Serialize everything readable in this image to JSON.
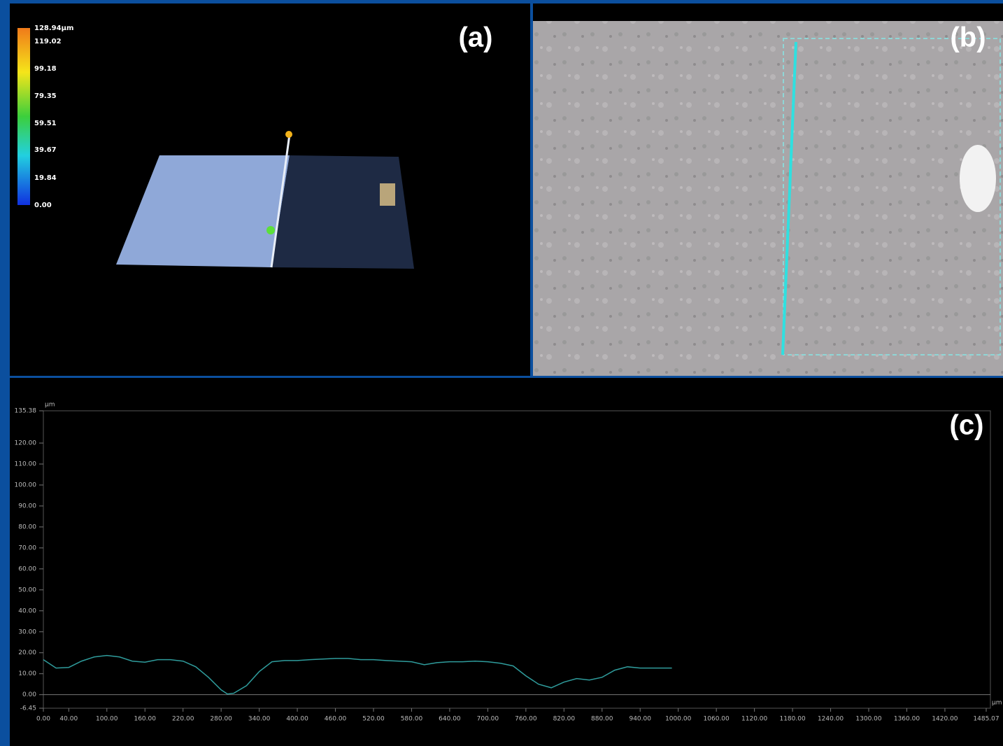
{
  "panels": {
    "a": {
      "label": "(a)",
      "colorbar": {
        "labels": [
          "128.94µm",
          "119.02",
          "99.18",
          "79.35",
          "59.51",
          "39.67",
          "19.84",
          "0.00"
        ]
      }
    },
    "b": {
      "label": "(b)"
    }
  },
  "chart_data": {
    "type": "line",
    "label": "(c)",
    "y_unit": "µm",
    "x_unit": "µm",
    "x": [
      0,
      20,
      40,
      60,
      80,
      100,
      120,
      140,
      160,
      180,
      200,
      220,
      240,
      260,
      280,
      290,
      300,
      320,
      340,
      360,
      380,
      400,
      420,
      440,
      460,
      480,
      500,
      520,
      540,
      560,
      580,
      600,
      620,
      640,
      660,
      680,
      700,
      720,
      740,
      760,
      780,
      800,
      820,
      840,
      860,
      880,
      900,
      920,
      940,
      960,
      980,
      990
    ],
    "series": [
      {
        "color": "#2f9c9c",
        "values": [
          16.7,
          12.7,
          13,
          16,
          18,
          18.7,
          18,
          16,
          15.5,
          16.7,
          16.7,
          16,
          13.3,
          8.3,
          2.3,
          0.3,
          0.7,
          4.3,
          11,
          15.7,
          16.3,
          16.3,
          16.7,
          17,
          17.3,
          17.3,
          16.7,
          16.7,
          16.3,
          16,
          15.7,
          14.3,
          15.3,
          15.7,
          15.7,
          16,
          15.7,
          15,
          13.7,
          9,
          5,
          3.3,
          6,
          7.7,
          7,
          8.3,
          11.7,
          13.3,
          12.7,
          12.7,
          12.7,
          12.7
        ]
      }
    ],
    "xlim": [
      0,
      1485.07
    ],
    "ylim": [
      -6.45,
      135.38
    ],
    "xticks": [
      {
        "value": 0,
        "label": "0.00"
      },
      {
        "value": 40,
        "label": "40.00"
      },
      {
        "value": 100,
        "label": "100.00"
      },
      {
        "value": 160,
        "label": "160.00"
      },
      {
        "value": 220,
        "label": "220.00"
      },
      {
        "value": 280,
        "label": "280.00"
      },
      {
        "value": 340,
        "label": "340.00"
      },
      {
        "value": 400,
        "label": "400.00"
      },
      {
        "value": 460,
        "label": "460.00"
      },
      {
        "value": 520,
        "label": "520.00"
      },
      {
        "value": 580,
        "label": "580.00"
      },
      {
        "value": 640,
        "label": "640.00"
      },
      {
        "value": 700,
        "label": "700.00"
      },
      {
        "value": 760,
        "label": "760.00"
      },
      {
        "value": 820,
        "label": "820.00"
      },
      {
        "value": 880,
        "label": "880.00"
      },
      {
        "value": 940,
        "label": "940.00"
      },
      {
        "value": 1000,
        "label": "1000.00"
      },
      {
        "value": 1060,
        "label": "1060.00"
      },
      {
        "value": 1120,
        "label": "1120.00"
      },
      {
        "value": 1180,
        "label": "1180.00"
      },
      {
        "value": 1240,
        "label": "1240.00"
      },
      {
        "value": 1300,
        "label": "1300.00"
      },
      {
        "value": 1360,
        "label": "1360.00"
      },
      {
        "value": 1420,
        "label": "1420.00"
      },
      1485.07
    ],
    "yticks": [
      -6.45,
      {
        "value": 0,
        "label": "0.00"
      },
      {
        "value": 10,
        "label": "10.00"
      },
      {
        "value": 20,
        "label": "20.00"
      },
      {
        "value": 30,
        "label": "30.00"
      },
      {
        "value": 40,
        "label": "40.00"
      },
      {
        "value": 50,
        "label": "50.00"
      },
      {
        "value": 60,
        "label": "60.00"
      },
      {
        "value": 70,
        "label": "70.00"
      },
      {
        "value": 80,
        "label": "80.00"
      },
      {
        "value": 90,
        "label": "90.00"
      },
      {
        "value": 100,
        "label": "100.00"
      },
      {
        "value": 110,
        "label": "110.00"
      },
      {
        "value": 120,
        "label": "120.00"
      },
      135.38
    ]
  }
}
